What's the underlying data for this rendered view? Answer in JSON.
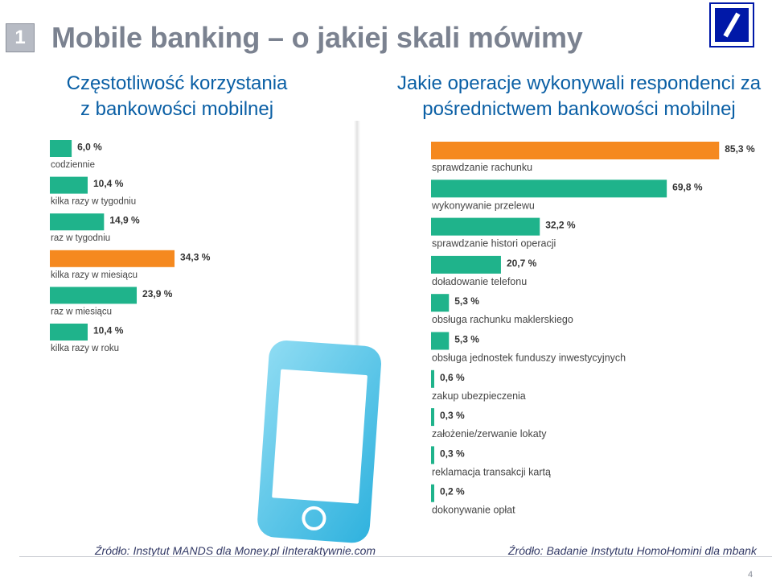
{
  "slide": {
    "number": "1",
    "title": "Mobile banking – o jakiej skali mówimy",
    "page_number": "4"
  },
  "left_panel": {
    "subtitle_line1": "Częstotliwość korzystania",
    "subtitle_line2": "z bankowości mobilnej",
    "source": "Źródło: Instytut MANDS dla Money.pl iInteraktywnie.com"
  },
  "right_panel": {
    "subtitle_line1": "Jakie operacje wykonywali respondenci za",
    "subtitle_line2": "pośrednictwem bankowości mobilnej",
    "source": "Źródło: Badanie Instytutu HomoHomini dla mbank"
  },
  "colors": {
    "green": "#1fb38b",
    "orange": "#f5891f",
    "subtitle_blue": "#0a5fa5",
    "logo_blue": "#0018a8",
    "phone_cyan": "#49c2e6"
  },
  "icons": [
    "deutsche-bank-logo-icon",
    "smartphone-icon"
  ],
  "chart_data": [
    {
      "type": "bar",
      "orientation": "horizontal",
      "categories": [
        "codziennie",
        "kilka razy w tygodniu",
        "raz w tygodniu",
        "kilka razy w miesiącu",
        "raz w miesiącu",
        "kilka razy w roku"
      ],
      "values": [
        6.0,
        10.4,
        14.9,
        34.3,
        23.9,
        10.4
      ],
      "value_labels": [
        "6,0 %",
        "10,4 %",
        "14,9 %",
        "34,3 %",
        "23,9 %",
        "10,4 %"
      ],
      "highlight_index": 3,
      "unit": "%"
    },
    {
      "type": "bar",
      "orientation": "horizontal",
      "categories": [
        "sprawdzanie rachunku",
        "wykonywanie przelewu",
        "sprawdzanie histori operacji",
        "doładowanie telefonu",
        "obsługa rachunku maklerskiego",
        "obsługa jednostek funduszy inwestycyjnych",
        "zakup ubezpieczenia",
        "założenie/zerwanie lokaty",
        "reklamacja transakcji kartą",
        "dokonywanie opłat"
      ],
      "values": [
        85.3,
        69.8,
        32.2,
        20.7,
        5.3,
        5.3,
        0.6,
        0.3,
        0.3,
        0.2
      ],
      "value_labels": [
        "85,3 %",
        "69,8 %",
        "32,2 %",
        "20,7 %",
        "5,3 %",
        "5,3 %",
        "0,6 %",
        "0,3 %",
        "0,3 %",
        "0,2 %"
      ],
      "highlight_index": 0,
      "unit": "%"
    }
  ]
}
